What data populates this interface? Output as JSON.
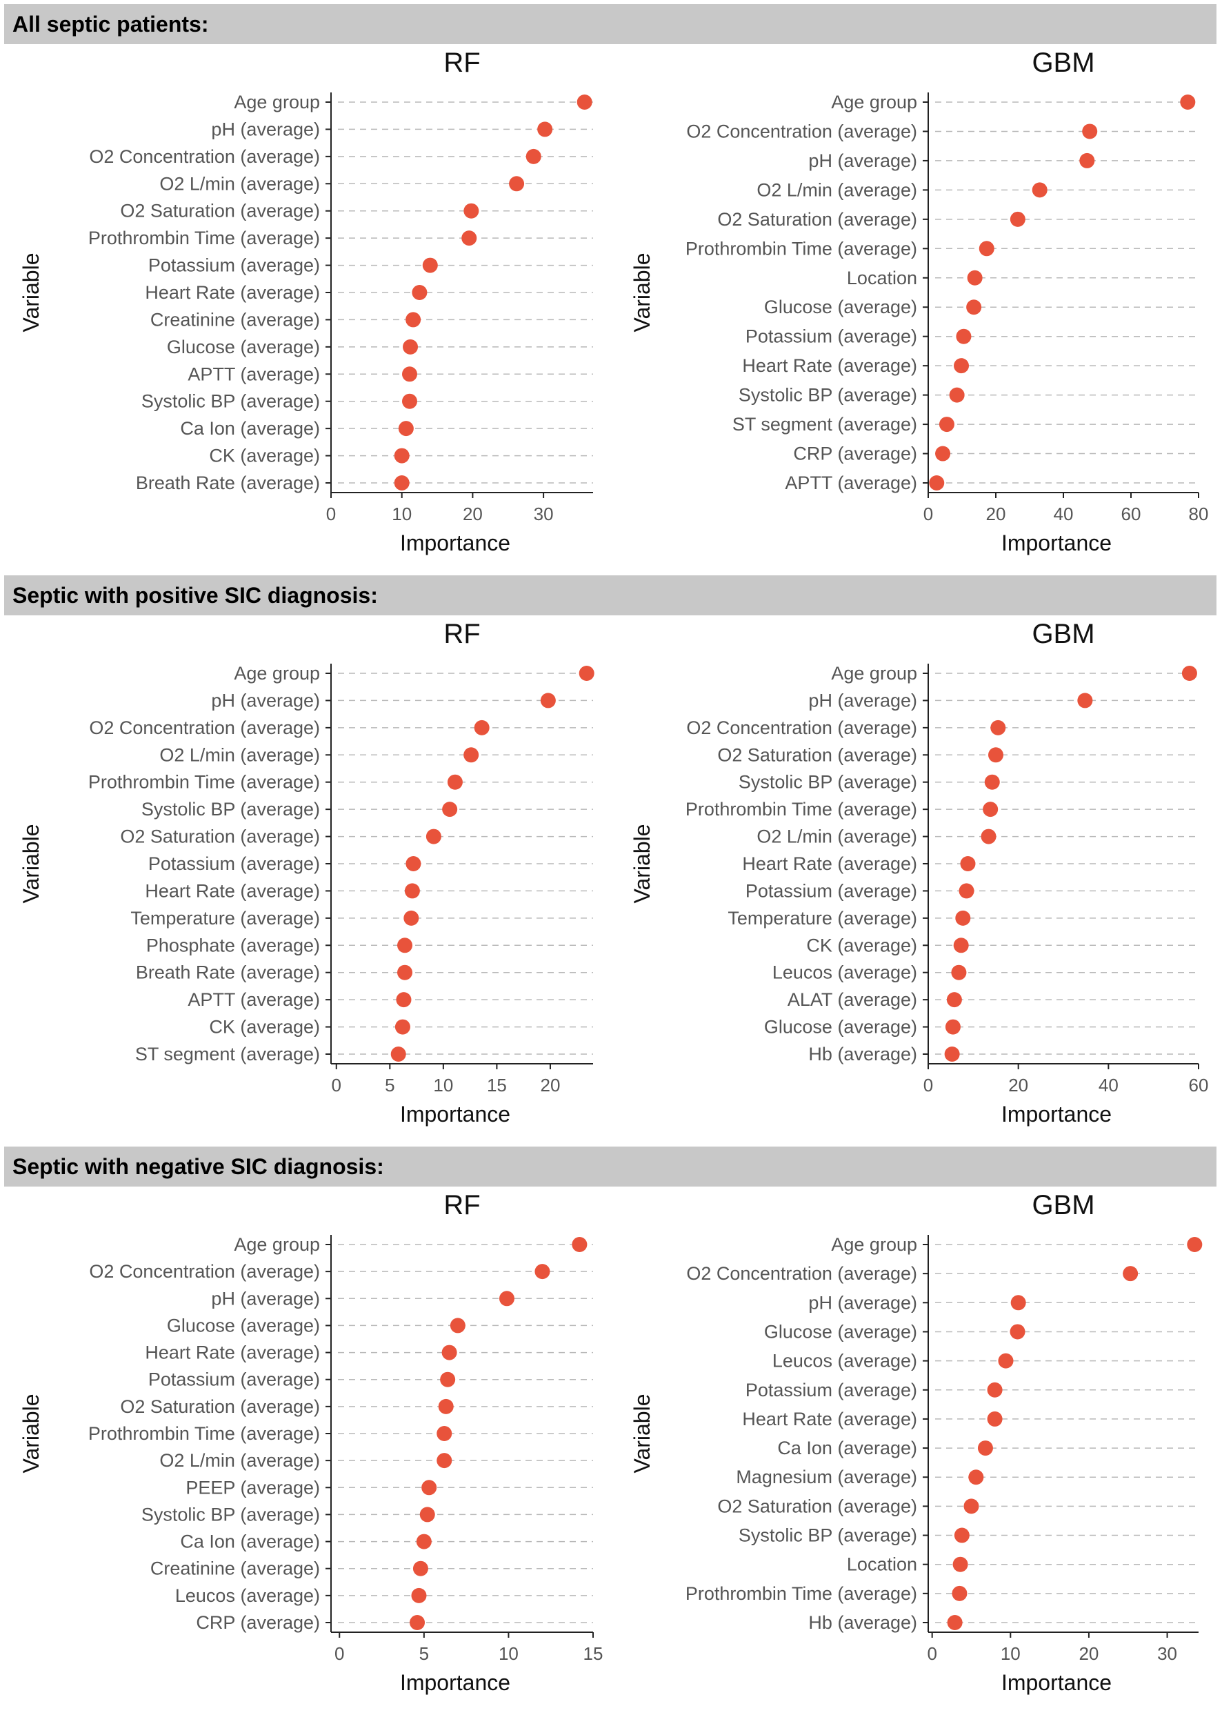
{
  "chart_data": [
    {
      "section": "All septic patients:",
      "panels": [
        {
          "type": "dot",
          "title": "RF",
          "xlabel": "Importance",
          "ylabel": "Variable",
          "xlim": [
            0,
            37
          ],
          "xticks": [
            0,
            10,
            20,
            30
          ],
          "variables": [
            "Age group",
            "pH (average)",
            "O2 Concentration (average)",
            "O2 L/min (average)",
            "O2 Saturation (average)",
            "Prothrombin Time (average)",
            "Potassium (average)",
            "Heart Rate (average)",
            "Creatinine (average)",
            "Glucose (average)",
            "APTT (average)",
            "Systolic BP (average)",
            "Ca Ion (average)",
            "CK (average)",
            "Breath Rate (average)"
          ],
          "values": [
            35.8,
            30.2,
            28.6,
            26.2,
            19.8,
            19.5,
            14.0,
            12.5,
            11.6,
            11.2,
            11.1,
            11.1,
            10.6,
            10.0,
            10.0
          ]
        },
        {
          "type": "dot",
          "title": "GBM",
          "xlabel": "Importance",
          "ylabel": "Variable",
          "xlim": [
            0,
            80
          ],
          "xticks": [
            0,
            20,
            40,
            60,
            80
          ],
          "variables": [
            "Age group",
            "O2 Concentration (average)",
            "pH (average)",
            "O2 L/min (average)",
            "O2 Saturation (average)",
            "Prothrombin Time (average)",
            "Location",
            "Glucose (average)",
            "Potassium (average)",
            "Heart Rate (average)",
            "Systolic BP (average)",
            "ST segment (average)",
            "CRP (average)",
            "APTT (average)"
          ],
          "values": [
            76.8,
            47.8,
            47.0,
            33.0,
            26.5,
            17.3,
            13.8,
            13.5,
            10.5,
            9.8,
            8.5,
            5.5,
            4.3,
            2.5
          ]
        }
      ]
    },
    {
      "section": "Septic with positive SIC diagnosis:",
      "panels": [
        {
          "type": "dot",
          "title": "RF",
          "xlabel": "Importance",
          "ylabel": "Variable",
          "xlim": [
            -0.5,
            24
          ],
          "xticks": [
            0,
            5,
            10,
            15,
            20
          ],
          "variables": [
            "Age group",
            "pH (average)",
            "O2 Concentration (average)",
            "O2 L/min (average)",
            "Prothrombin Time (average)",
            "Systolic BP (average)",
            "O2 Saturation (average)",
            "Potassium (average)",
            "Heart Rate (average)",
            "Temperature (average)",
            "Phosphate (average)",
            "Breath Rate (average)",
            "APTT (average)",
            "CK (average)",
            "ST segment (average)"
          ],
          "values": [
            23.4,
            19.8,
            13.6,
            12.6,
            11.1,
            10.6,
            9.1,
            7.2,
            7.1,
            7.0,
            6.4,
            6.4,
            6.3,
            6.2,
            5.8
          ]
        },
        {
          "type": "dot",
          "title": "GBM",
          "xlabel": "Importance",
          "ylabel": "Variable",
          "xlim": [
            0,
            60
          ],
          "xticks": [
            0,
            20,
            40,
            60
          ],
          "variables": [
            "Age group",
            "pH (average)",
            "O2 Concentration (average)",
            "O2 Saturation (average)",
            "Systolic BP (average)",
            "Prothrombin Time (average)",
            "O2 L/min (average)",
            "Heart Rate (average)",
            "Potassium (average)",
            "Temperature (average)",
            "CK (average)",
            "Leucos (average)",
            "ALAT (average)",
            "Glucose (average)",
            "Hb (average)"
          ],
          "values": [
            58.0,
            34.8,
            15.5,
            15.0,
            14.2,
            13.8,
            13.4,
            8.8,
            8.5,
            7.7,
            7.3,
            6.8,
            5.8,
            5.5,
            5.3
          ]
        }
      ]
    },
    {
      "section": "Septic with negative SIC diagnosis:",
      "panels": [
        {
          "type": "dot",
          "title": "RF",
          "xlabel": "Importance",
          "ylabel": "Variable",
          "xlim": [
            -0.5,
            15
          ],
          "xticks": [
            0,
            5,
            10,
            15
          ],
          "variables": [
            "Age group",
            "O2 Concentration (average)",
            "pH (average)",
            "Glucose (average)",
            "Heart Rate (average)",
            "Potassium (average)",
            "O2 Saturation (average)",
            "Prothrombin Time (average)",
            "O2 L/min (average)",
            "PEEP  (average)",
            "Systolic BP (average)",
            "Ca Ion (average)",
            "Creatinine (average)",
            "Leucos (average)",
            "CRP (average)"
          ],
          "values": [
            14.2,
            12.0,
            9.9,
            7.0,
            6.5,
            6.4,
            6.3,
            6.2,
            6.2,
            5.3,
            5.2,
            5.0,
            4.8,
            4.7,
            4.6
          ]
        },
        {
          "type": "dot",
          "title": "GBM",
          "xlabel": "Importance",
          "ylabel": "Variable",
          "xlim": [
            -0.5,
            34
          ],
          "xticks": [
            0,
            10,
            20,
            30
          ],
          "variables": [
            "Age group",
            "O2 Concentration (average)",
            "pH (average)",
            "Glucose (average)",
            "Leucos (average)",
            "Potassium (average)",
            "Heart Rate (average)",
            "Ca Ion (average)",
            "Magnesium (average)",
            "O2 Saturation (average)",
            "Systolic BP (average)",
            "Location",
            "Prothrombin Time (average)",
            "Hb (average)"
          ],
          "values": [
            33.5,
            25.3,
            11.0,
            10.9,
            9.4,
            8.0,
            8.0,
            6.8,
            5.6,
            5.0,
            3.8,
            3.6,
            3.5,
            2.9
          ]
        }
      ]
    }
  ]
}
